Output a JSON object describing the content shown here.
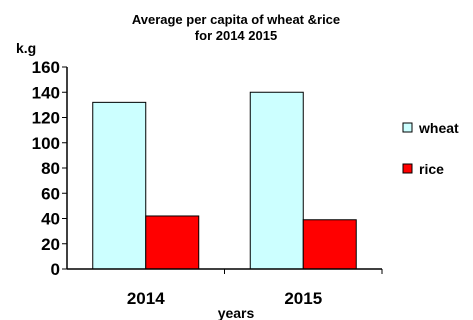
{
  "chart_data": {
    "type": "bar",
    "title_line1": "Average per capita of wheat &rice",
    "title_line2": "for 2014 2015",
    "ylabel": "k.g",
    "xlabel": "years",
    "categories": [
      "2014",
      "2015"
    ],
    "series": [
      {
        "name": "wheat",
        "values": [
          132,
          140
        ],
        "color": "#ccffff"
      },
      {
        "name": "rice",
        "values": [
          42,
          39
        ],
        "color": "#ff0000"
      }
    ],
    "ylim": [
      0,
      160
    ],
    "yticks": [
      "0",
      "20",
      "40",
      "60",
      "80",
      "100",
      "120",
      "140",
      "160"
    ],
    "grid": false,
    "legend_position": "right"
  }
}
